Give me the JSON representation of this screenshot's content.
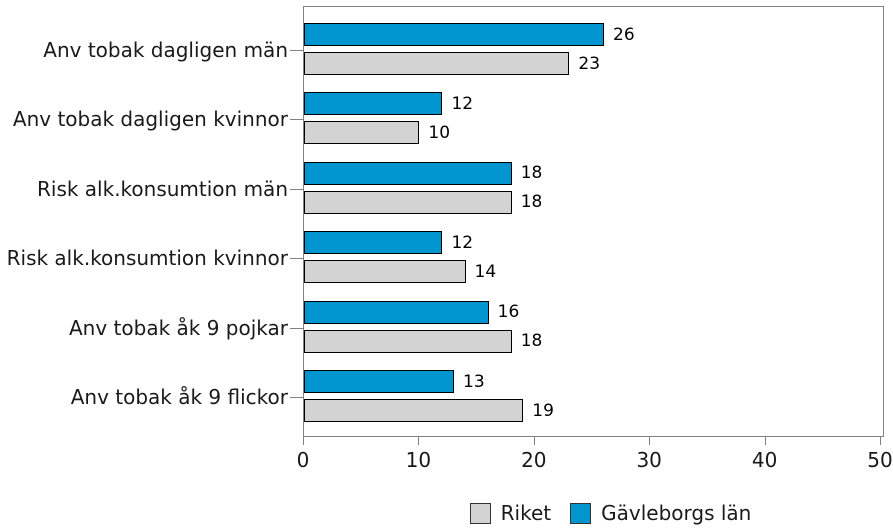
{
  "chart_data": {
    "type": "bar",
    "orientation": "horizontal",
    "title": "",
    "categories": [
      "Anv tobak dagligen män",
      "Anv tobak dagligen kvinnor",
      "Risk alk.konsumtion män",
      "Risk alk.konsumtion kvinnor",
      "Anv tobak åk 9 pojkar",
      "Anv tobak åk 9 flickor"
    ],
    "series": [
      {
        "name": "Gävleborgs län",
        "color": "#0095CE",
        "values": [
          26,
          12,
          18,
          12,
          16,
          13
        ]
      },
      {
        "name": "Riket",
        "color": "#D3D3D3",
        "values": [
          23,
          10,
          18,
          14,
          18,
          19
        ]
      }
    ],
    "xlim": [
      0,
      50
    ],
    "x_ticks": [
      "0",
      "10",
      "20",
      "30",
      "40",
      "50"
    ],
    "x_tick_values": [
      0,
      10,
      20,
      30,
      40,
      50
    ],
    "grid": false,
    "value_labels_shown": true,
    "legend_position": "bottom",
    "legend_items": [
      {
        "label": "Riket",
        "color": "#D3D3D3"
      },
      {
        "label": "Gävleborgs län",
        "color": "#0095CE"
      }
    ]
  },
  "colors": {
    "axis": "#808080",
    "bar_border": "#000000",
    "text": "#1A1A1A",
    "background": "#FFFFFF"
  }
}
